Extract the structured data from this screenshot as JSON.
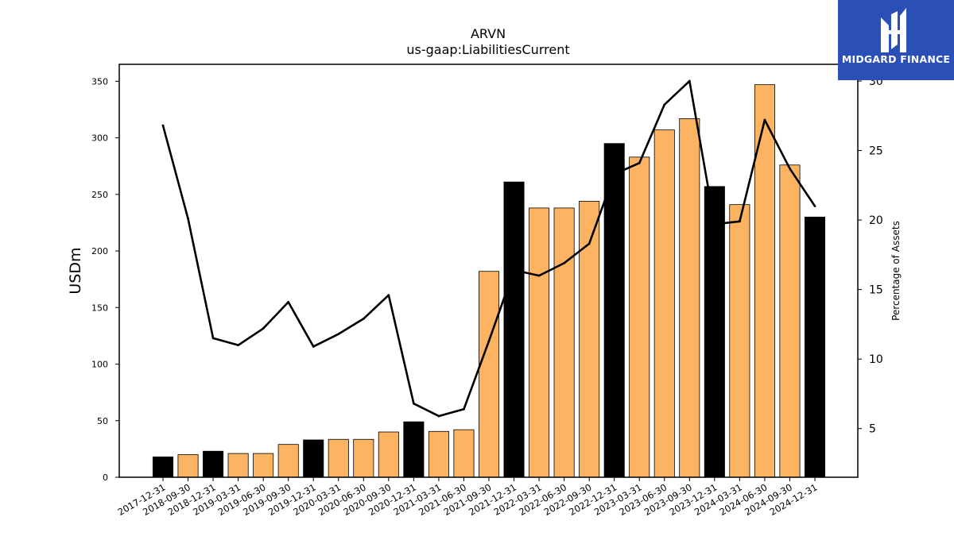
{
  "chart_data": {
    "type": "bar",
    "title": "ARVN",
    "subtitle": "us-gaap:LiabilitiesCurrent",
    "ylabel": "USDm",
    "y2label": "Percentage of Assets",
    "ylim": [
      0,
      365
    ],
    "y2lim": [
      1.5,
      31.2
    ],
    "yticks": [
      0,
      50,
      100,
      150,
      200,
      250,
      300,
      350
    ],
    "y2ticks": [
      5,
      10,
      15,
      20,
      25,
      30
    ],
    "categories": [
      "2017-12-31",
      "2018-09-30",
      "2018-12-31",
      "2019-03-31",
      "2019-06-30",
      "2019-09-30",
      "2019-12-31",
      "2020-03-31",
      "2020-06-30",
      "2020-09-30",
      "2020-12-31",
      "2021-03-31",
      "2021-06-30",
      "2021-09-30",
      "2021-12-31",
      "2022-03-31",
      "2022-06-30",
      "2022-09-30",
      "2022-12-31",
      "2023-03-31",
      "2023-06-30",
      "2023-09-30",
      "2023-12-31",
      "2024-03-31",
      "2024-06-30",
      "2024-09-30",
      "2024-12-31"
    ],
    "series": [
      {
        "kind": "bar",
        "values": [
          18,
          20,
          23,
          21,
          21,
          29,
          33,
          33.5,
          33.5,
          40,
          49,
          40.5,
          42,
          182,
          261,
          238,
          238,
          244,
          295,
          283,
          307,
          317,
          257,
          241,
          347,
          276,
          230
        ],
        "year_end": [
          true,
          false,
          true,
          false,
          false,
          false,
          true,
          false,
          false,
          false,
          true,
          false,
          false,
          false,
          true,
          false,
          false,
          false,
          true,
          false,
          false,
          false,
          true,
          false,
          false,
          false,
          true
        ]
      },
      {
        "kind": "line",
        "axis": "secondary",
        "values": [
          26.8,
          20.1,
          11.5,
          11.0,
          12.2,
          14.1,
          10.9,
          11.8,
          12.9,
          14.6,
          6.8,
          5.9,
          6.4,
          11.3,
          16.4,
          16.0,
          16.9,
          18.3,
          23.3,
          24.1,
          28.3,
          30.0,
          19.7,
          19.9,
          27.2,
          23.7,
          21.0
        ]
      }
    ],
    "colors": {
      "bar_default": "#fdb462",
      "bar_year_end": "#000000",
      "line": "#000000"
    }
  },
  "logo": {
    "text": "MIDGARD FINANCE"
  }
}
